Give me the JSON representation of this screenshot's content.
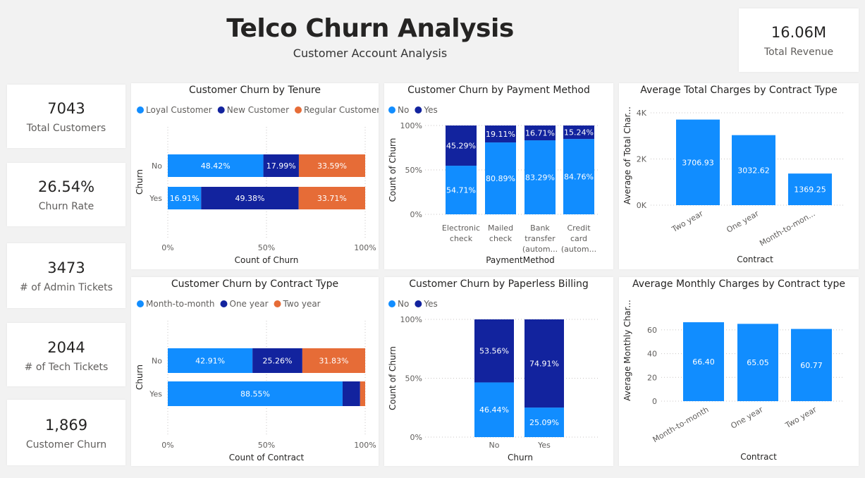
{
  "header": {
    "title": "Telco Churn Analysis",
    "subtitle": "Customer Account Analysis"
  },
  "revenue": {
    "value": "16.06M",
    "label": "Total Revenue"
  },
  "kpis": [
    {
      "value": "7043",
      "label": "Total Customers"
    },
    {
      "value": "26.54%",
      "label": "Churn Rate"
    },
    {
      "value": "3473",
      "label": "# of Admin Tickets"
    },
    {
      "value": "2044",
      "label": "# of Tech Tickets"
    },
    {
      "value": "1,869",
      "label": "Customer Churn"
    }
  ],
  "colors": {
    "light_blue": "#118dff",
    "navy": "#12239e",
    "orange": "#e66c37",
    "bar_blue": "#118dff"
  },
  "chart_data": [
    {
      "id": "tenure",
      "type": "bar",
      "orientation": "horizontal",
      "stacked_percent": true,
      "title": "Customer Churn by Tenure",
      "xlabel": "Count of Churn",
      "ylabel": "Churn",
      "categories": [
        "No",
        "Yes"
      ],
      "xticks": [
        "0%",
        "50%",
        "100%"
      ],
      "legend_position": "top-left",
      "series": [
        {
          "name": "Loyal Customer",
          "color": "#118dff",
          "values": [
            48.42,
            16.91
          ],
          "labels": [
            "48.42%",
            "16.91%"
          ]
        },
        {
          "name": "New Customer",
          "color": "#12239e",
          "values": [
            17.99,
            49.38
          ],
          "labels": [
            "17.99%",
            "49.38%"
          ]
        },
        {
          "name": "Regular Customer",
          "color": "#e66c37",
          "values": [
            33.59,
            33.71
          ],
          "labels": [
            "33.59%",
            "33.71%"
          ]
        }
      ]
    },
    {
      "id": "contract_churn",
      "type": "bar",
      "orientation": "horizontal",
      "stacked_percent": true,
      "title": "Customer Churn by Contract Type",
      "xlabel": "Count of Contract",
      "ylabel": "Churn",
      "categories": [
        "No",
        "Yes"
      ],
      "xticks": [
        "0%",
        "50%",
        "100%"
      ],
      "legend_position": "top-left",
      "series": [
        {
          "name": "Month-to-month",
          "color": "#118dff",
          "values": [
            42.91,
            88.55
          ],
          "labels": [
            "42.91%",
            "88.55%"
          ]
        },
        {
          "name": "One year",
          "color": "#12239e",
          "values": [
            25.26,
            8.88
          ],
          "labels": [
            "25.26%",
            ""
          ]
        },
        {
          "name": "Two year",
          "color": "#e66c37",
          "values": [
            31.83,
            2.57
          ],
          "labels": [
            "31.83%",
            ""
          ]
        }
      ]
    },
    {
      "id": "payment",
      "type": "bar",
      "orientation": "vertical",
      "stacked_percent": true,
      "title": "Customer Churn by Payment Method",
      "xlabel": "PaymentMethod",
      "ylabel": "Count of Churn",
      "categories": [
        [
          "Electronic",
          "check"
        ],
        [
          "Mailed",
          "check"
        ],
        [
          "Bank",
          "transfer",
          "(autom..."
        ],
        [
          "Credit",
          "card",
          "(autom..."
        ]
      ],
      "yticks": [
        "0%",
        "50%",
        "100%"
      ],
      "legend_position": "top-left",
      "series": [
        {
          "name": "No",
          "color": "#118dff",
          "values": [
            54.71,
            80.89,
            83.29,
            84.76
          ],
          "labels": [
            "54.71%",
            "80.89%",
            "83.29%",
            "84.76%"
          ]
        },
        {
          "name": "Yes",
          "color": "#12239e",
          "values": [
            45.29,
            19.11,
            16.71,
            15.24
          ],
          "labels": [
            "45.29%",
            "19.11%",
            "16.71%",
            "15.24%"
          ]
        }
      ]
    },
    {
      "id": "paperless",
      "type": "bar",
      "orientation": "vertical",
      "stacked_percent": true,
      "title": "Customer Churn by Paperless Billing",
      "xlabel": "Churn",
      "ylabel": "Count of Churn",
      "categories": [
        [
          "No"
        ],
        [
          "Yes"
        ]
      ],
      "yticks": [
        "0%",
        "50%",
        "100%"
      ],
      "legend_position": "top-left",
      "series": [
        {
          "name": "No",
          "color": "#118dff",
          "values": [
            46.44,
            25.09
          ],
          "labels": [
            "46.44%",
            "25.09%"
          ]
        },
        {
          "name": "Yes",
          "color": "#12239e",
          "values": [
            53.56,
            74.91
          ],
          "labels": [
            "53.56%",
            "74.91%"
          ]
        }
      ]
    },
    {
      "id": "total_charges",
      "type": "bar",
      "orientation": "vertical",
      "title": "Average Total Charges by Contract Type",
      "xlabel": "Contract",
      "ylabel": "Average of Total Char...",
      "categories": [
        "Two year",
        "One year",
        "Month-to-mon..."
      ],
      "values": [
        3706.93,
        3032.62,
        1369.25
      ],
      "labels": [
        "3706.93",
        "3032.62",
        "1369.25"
      ],
      "ylim": [
        0,
        4000
      ],
      "yticks": [
        {
          "v": 0,
          "t": "0K"
        },
        {
          "v": 2000,
          "t": "2K"
        },
        {
          "v": 4000,
          "t": "4K"
        }
      ]
    },
    {
      "id": "monthly_charges",
      "type": "bar",
      "orientation": "vertical",
      "title": "Average Monthly Charges by Contract type",
      "xlabel": "Contract",
      "ylabel": "Average Monthly Char...",
      "categories": [
        "Month-to-month",
        "One year",
        "Two year"
      ],
      "values": [
        66.4,
        65.05,
        60.77
      ],
      "labels": [
        "66.40",
        "65.05",
        "60.77"
      ],
      "ylim": [
        0,
        70
      ],
      "yticks": [
        {
          "v": 0,
          "t": "0"
        },
        {
          "v": 20,
          "t": "20"
        },
        {
          "v": 40,
          "t": "40"
        },
        {
          "v": 60,
          "t": "60"
        }
      ]
    }
  ]
}
